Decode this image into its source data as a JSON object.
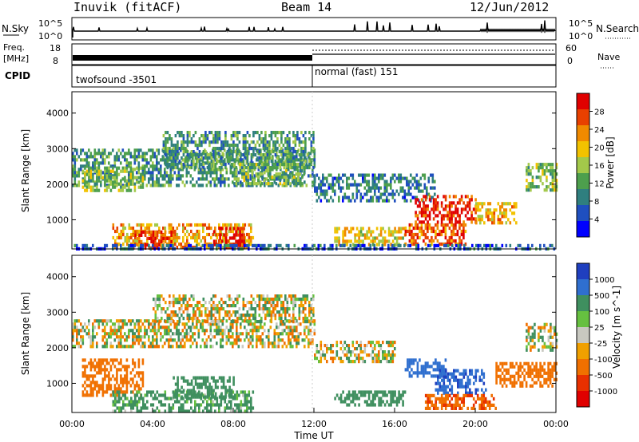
{
  "header": {
    "title": "Inuvik (fitACF)",
    "beam": "Beam 14",
    "date": "12/Jun/2012"
  },
  "top_panels": {
    "nsky_label": "N.Sky",
    "nsky_ticks": [
      "10^5",
      "10^0"
    ],
    "nsearch_label": "N.Search",
    "nsearch_ticks": [
      "10^5",
      "10^0"
    ],
    "freq_label": "Freq.",
    "freq_unit": "[MHz]",
    "freq_ticks": [
      "18",
      "8"
    ],
    "nave_label": "Nave",
    "nave_ticks": [
      "60",
      "0"
    ],
    "cpid_label": "CPID",
    "cpid_modes": [
      {
        "name": "twofsound -3501",
        "start_hour": 0,
        "end_hour": 12
      },
      {
        "name": "normal (fast) 151",
        "start_hour": 12,
        "end_hour": 24
      }
    ]
  },
  "chart_data": [
    {
      "type": "heatmap",
      "panel": "power",
      "ylabel": "Slant Range [km]",
      "ylim": [
        180,
        4600
      ],
      "yticks": [
        1000,
        2000,
        3000,
        4000
      ],
      "xlim": [
        0,
        24
      ],
      "colorbar": {
        "label": "Power [dB]",
        "ticks": [
          "4",
          "8",
          "12",
          "16",
          "20",
          "24",
          "28"
        ],
        "range": [
          0,
          30
        ],
        "colors": [
          "#0000ff",
          "#1f4fbf",
          "#2f7f7f",
          "#4d9f4d",
          "#a3c94a",
          "#f2c200",
          "#f08a00",
          "#e84000",
          "#e00000"
        ]
      },
      "regions": [
        {
          "t0": 0.0,
          "t1": 12.0,
          "r0": 2000,
          "r1": 3000,
          "value": 10
        },
        {
          "t0": 0.5,
          "t1": 3.5,
          "r0": 1800,
          "r1": 2500,
          "value": 14
        },
        {
          "t0": 2.0,
          "t1": 9.0,
          "r0": 250,
          "r1": 900,
          "value": 20
        },
        {
          "t0": 3.0,
          "t1": 5.0,
          "r0": 250,
          "r1": 700,
          "value": 26
        },
        {
          "t0": 7.0,
          "t1": 8.5,
          "r0": 250,
          "r1": 800,
          "value": 28
        },
        {
          "t0": 4.5,
          "t1": 12.0,
          "r0": 2500,
          "r1": 3500,
          "value": 10
        },
        {
          "t0": 8.0,
          "t1": 11.5,
          "r0": 2000,
          "r1": 2600,
          "value": 13
        },
        {
          "t0": 12.0,
          "t1": 18.0,
          "r0": 1500,
          "r1": 2300,
          "value": 8
        },
        {
          "t0": 13.0,
          "t1": 16.5,
          "r0": 350,
          "r1": 800,
          "value": 18
        },
        {
          "t0": 16.5,
          "t1": 19.5,
          "r0": 350,
          "r1": 900,
          "value": 24
        },
        {
          "t0": 17.0,
          "t1": 20.0,
          "r0": 900,
          "r1": 1700,
          "value": 27
        },
        {
          "t0": 20.0,
          "t1": 22.0,
          "r0": 900,
          "r1": 1500,
          "value": 20
        },
        {
          "t0": 22.5,
          "t1": 24.0,
          "r0": 1800,
          "r1": 2600,
          "value": 14
        },
        {
          "t0": 0.0,
          "t1": 24.0,
          "r0": 180,
          "r1": 320,
          "value": 6
        }
      ]
    },
    {
      "type": "heatmap",
      "panel": "velocity",
      "ylabel": "Slant Range [km]",
      "xlabel": "Time UT",
      "ylim": [
        180,
        4600
      ],
      "yticks": [
        1000,
        2000,
        3000,
        4000
      ],
      "xlim": [
        0,
        24
      ],
      "xticks": [
        "00:00",
        "04:00",
        "08:00",
        "12:00",
        "16:00",
        "20:00",
        "00:00"
      ],
      "colorbar": {
        "label": "Velocity [m s^-1]",
        "ticks": [
          "1000",
          "500",
          "100",
          "25",
          "-25",
          "-100",
          "-500",
          "-1000"
        ],
        "colors": [
          "#1f3fbf",
          "#2f6fcf",
          "#3f8f5f",
          "#66c040",
          "#c8c8c0",
          "#f0a000",
          "#f07000",
          "#e83000",
          "#e00000"
        ]
      },
      "regions": [
        {
          "t0": 0.0,
          "t1": 12.0,
          "r0": 2000,
          "r1": 2800,
          "value": 0
        },
        {
          "t0": 4.0,
          "t1": 12.0,
          "r0": 2700,
          "r1": 3500,
          "value": 0
        },
        {
          "t0": 0.5,
          "t1": 3.5,
          "r0": 700,
          "r1": 1700,
          "value": -300
        },
        {
          "t0": 2.0,
          "t1": 9.0,
          "r0": 200,
          "r1": 800,
          "value": 200
        },
        {
          "t0": 5.0,
          "t1": 8.0,
          "r0": 600,
          "r1": 1200,
          "value": 300
        },
        {
          "t0": 12.0,
          "t1": 16.0,
          "r0": 1600,
          "r1": 2200,
          "value": 0
        },
        {
          "t0": 13.0,
          "t1": 16.5,
          "r0": 400,
          "r1": 800,
          "value": 300
        },
        {
          "t0": 16.5,
          "t1": 18.5,
          "r0": 1200,
          "r1": 1700,
          "value": 800
        },
        {
          "t0": 18.0,
          "t1": 20.5,
          "r0": 700,
          "r1": 1400,
          "value": 900
        },
        {
          "t0": 17.5,
          "t1": 21.0,
          "r0": 300,
          "r1": 700,
          "value": -400
        },
        {
          "t0": 21.0,
          "t1": 24.0,
          "r0": 900,
          "r1": 1600,
          "value": -300
        },
        {
          "t0": 22.5,
          "t1": 24.0,
          "r0": 1900,
          "r1": 2700,
          "value": 0
        }
      ]
    }
  ]
}
